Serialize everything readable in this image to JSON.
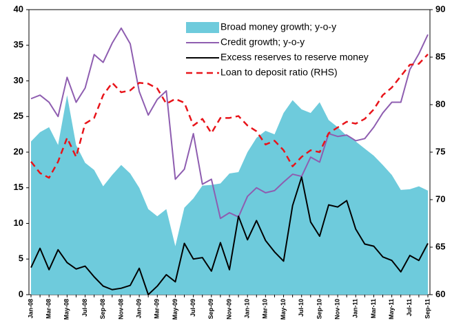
{
  "chart_data": {
    "type": "combo",
    "categories": [
      "Jan-08",
      null,
      "Mar-08",
      null,
      "May-08",
      null,
      "Jul-08",
      null,
      "Sep-08",
      null,
      "Nov-08",
      null,
      "Jan-09",
      null,
      "Mar-09",
      null,
      "May-09",
      null,
      "Jul-09",
      null,
      "Sep-09",
      null,
      "Nov-09",
      null,
      "Jan-10",
      null,
      "Mar-10",
      null,
      "May-10",
      null,
      "Jul-10",
      null,
      "Sep-10",
      null,
      "Nov-10",
      null,
      "Jan-11",
      null,
      "Mar-11",
      null,
      "May-11",
      null,
      "Jul-11",
      null,
      "Sep-11"
    ],
    "ylim": [
      0,
      40
    ],
    "yticks": [
      0,
      5,
      10,
      15,
      20,
      25,
      30,
      35,
      40
    ],
    "y2lim": [
      60,
      90
    ],
    "y2ticks": [
      60,
      65,
      70,
      75,
      80,
      85,
      90
    ],
    "legend": "upper right",
    "series": [
      {
        "name": "Broad money growth; y-o-y",
        "kind": "area",
        "color": "#6ecbdc",
        "values": [
          21.5,
          22.8,
          23.5,
          21,
          28,
          21,
          18.5,
          17.5,
          15.2,
          16.8,
          18.2,
          17,
          15,
          12,
          11,
          12,
          6.8,
          12.2,
          13.5,
          15.3,
          15.4,
          15.6,
          17,
          17.2,
          20,
          22,
          23,
          22.5,
          25.5,
          27.3,
          26,
          25.5,
          27,
          24.5,
          23.5,
          22.3,
          21.5,
          20.5,
          19.5,
          18.2,
          16.8,
          14.7,
          14.8,
          15.2,
          14.6
        ]
      },
      {
        "name": "Credit growth; y-o-y",
        "kind": "line",
        "color": "#8e5db0",
        "values": [
          27.5,
          28,
          27,
          25,
          30.5,
          27,
          29,
          33.7,
          32.6,
          35.3,
          37.4,
          35.2,
          28.5,
          25.2,
          27.4,
          28.6,
          16.2,
          17.6,
          22.6,
          15.5,
          16.2,
          10.7,
          11.5,
          10.9,
          13.8,
          15,
          14.3,
          14.6,
          15.8,
          16.9,
          16.6,
          19.3,
          18.6,
          22.6,
          22.2,
          22.4,
          21.6,
          21.9,
          23.5,
          25.5,
          27,
          27,
          31.6,
          33.8,
          36.5
        ]
      },
      {
        "name": "Excess reserves to reserve money",
        "kind": "line",
        "color": "#000000",
        "values": [
          3.8,
          6.5,
          3.5,
          6.3,
          4.5,
          3.6,
          4.0,
          2.5,
          1.2,
          0.7,
          0.9,
          1.3,
          3.7,
          0,
          1.2,
          2.8,
          1.8,
          7.2,
          5.0,
          5.2,
          3.3,
          7.3,
          3.5,
          11,
          7.7,
          10.4,
          7.6,
          6,
          4.7,
          12.5,
          16.5,
          10.2,
          8.2,
          12.6,
          12.3,
          13.2,
          9.2,
          7.1,
          6.8,
          5.3,
          4.8,
          3.2,
          5.5,
          4.8,
          7.2
        ]
      },
      {
        "name": "Loan to deposit ratio (RHS)",
        "kind": "line",
        "dashed": true,
        "axis": "y2",
        "color": "#e8141a",
        "values": [
          74,
          72.8,
          72.3,
          74,
          76.5,
          74.5,
          78,
          78.6,
          81,
          82.3,
          81.3,
          81.5,
          82.3,
          82.2,
          81.7,
          80.1,
          80.6,
          80.2,
          77.8,
          78.5,
          77,
          78.6,
          78.6,
          78.8,
          77.8,
          77.2,
          75.8,
          76.2,
          75.2,
          73.5,
          74.5,
          75.2,
          75,
          77,
          77.6,
          78.2,
          78,
          78.5,
          79.5,
          81,
          81.8,
          83,
          84.2,
          84.3,
          85.3
        ]
      }
    ]
  }
}
